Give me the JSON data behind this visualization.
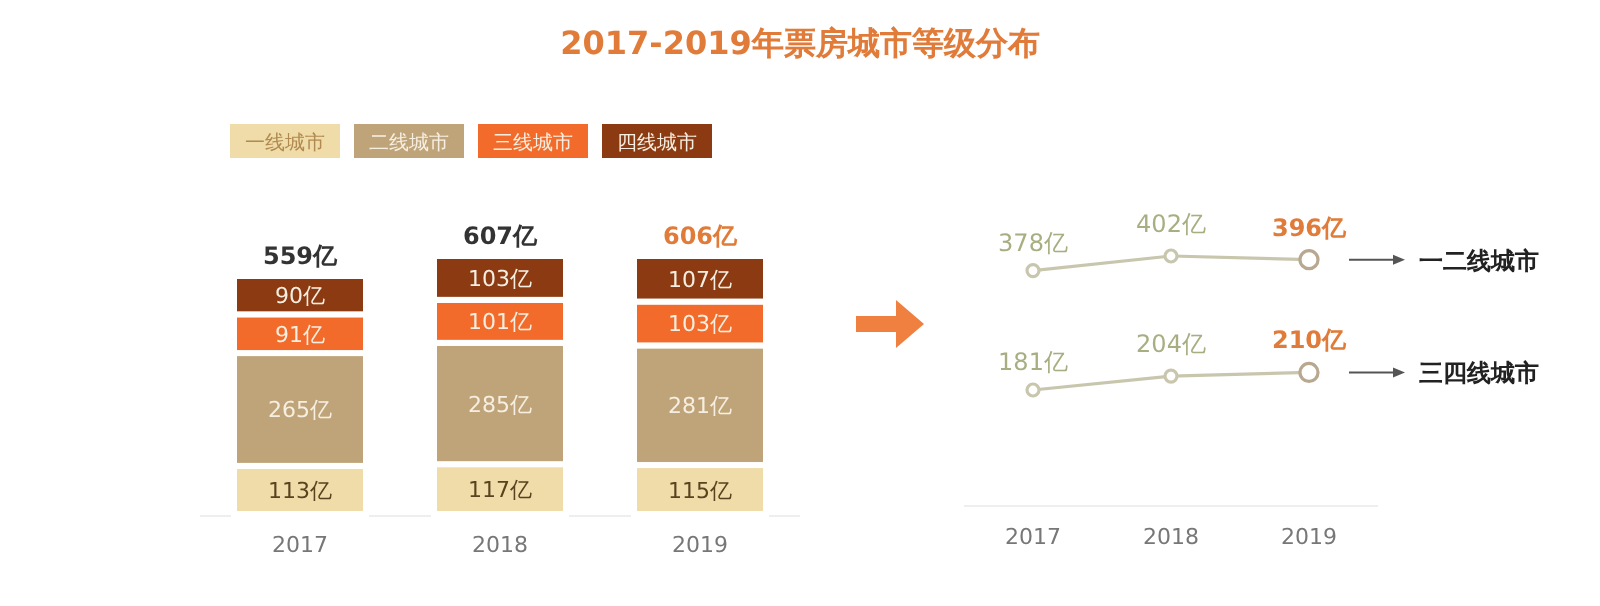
{
  "chart_data": [
    {
      "type": "bar",
      "title": "2017-2019年票房城市等级分布",
      "stacked": true,
      "legend": "top left",
      "categories": [
        "2017",
        "2018",
        "2019"
      ],
      "series": [
        {
          "name": "一线城市",
          "color": "#f0dca8",
          "values": [
            113,
            117,
            115
          ],
          "value_labels": [
            "113亿",
            "117亿",
            "115亿"
          ]
        },
        {
          "name": "二线城市",
          "color": "#bfa47a",
          "values": [
            265,
            285,
            281
          ],
          "value_labels": [
            "265亿",
            "285亿",
            "281亿"
          ]
        },
        {
          "name": "三线城市",
          "color": "#f26b2a",
          "values": [
            91,
            101,
            103
          ],
          "value_labels": [
            "91亿",
            "101亿",
            "103亿"
          ]
        },
        {
          "name": "四线城市",
          "color": "#8b3a12",
          "values": [
            90,
            103,
            107
          ],
          "value_labels": [
            "90亿",
            "103亿",
            "107亿"
          ]
        }
      ],
      "totals": [
        "559亿",
        "607亿",
        "606亿"
      ]
    },
    {
      "type": "line",
      "categories": [
        "2017",
        "2018",
        "2019"
      ],
      "marker": "circle",
      "series": [
        {
          "name": "一二线城市",
          "color": "#c9c6ae",
          "values": [
            378,
            402,
            396
          ],
          "value_labels": [
            "378亿",
            "402亿",
            "396亿"
          ]
        },
        {
          "name": "三四线城市",
          "color": "#c9c6ae",
          "values": [
            181,
            204,
            210
          ],
          "value_labels": [
            "181亿",
            "204亿",
            "210亿"
          ]
        }
      ]
    }
  ]
}
